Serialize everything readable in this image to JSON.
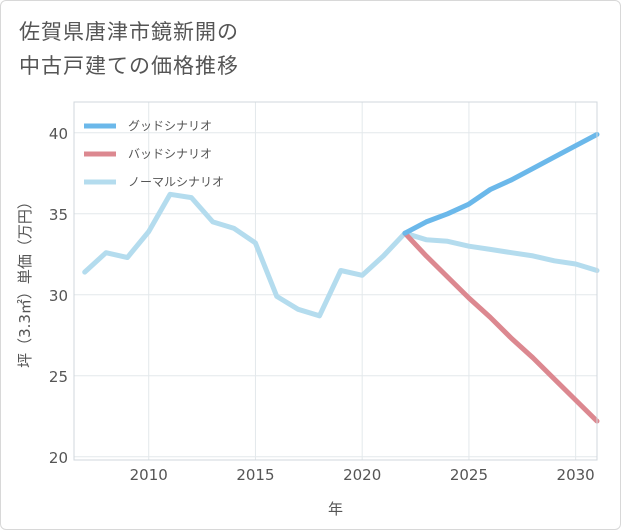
{
  "title": {
    "line1": "佐賀県唐津市鏡新開の",
    "line2": "中古戸建ての価格推移"
  },
  "chart_data": {
    "type": "line",
    "title": "佐賀県唐津市鏡新開の中古戸建ての価格推移",
    "xlabel": "年",
    "ylabel": "坪（3.3㎡）単価（万円）",
    "xlim": [
      2006.5,
      2031
    ],
    "ylim": [
      19.8,
      41.9
    ],
    "xticks": [
      2010,
      2015,
      2020,
      2025,
      2030
    ],
    "yticks": [
      20,
      25,
      30,
      35,
      40
    ],
    "grid": true,
    "legend_position": "top-left",
    "series": [
      {
        "name": "グッドシナリオ",
        "color": "#6bb8ea",
        "x": [
          2022,
          2023,
          2024,
          2025,
          2026,
          2027,
          2028,
          2029,
          2030,
          2031
        ],
        "values": [
          33.8,
          34.5,
          35.0,
          35.6,
          36.5,
          37.1,
          37.8,
          38.5,
          39.2,
          39.9
        ]
      },
      {
        "name": "バッドシナリオ",
        "color": "#dc8890",
        "x": [
          2022,
          2023,
          2024,
          2025,
          2026,
          2027,
          2028,
          2029,
          2030,
          2031
        ],
        "values": [
          33.8,
          32.4,
          31.1,
          29.8,
          28.6,
          27.3,
          26.1,
          24.8,
          23.5,
          22.2
        ]
      },
      {
        "name": "ノーマルシナリオ",
        "color": "#b4dcee",
        "x": [
          2007,
          2008,
          2009,
          2010,
          2011,
          2012,
          2013,
          2014,
          2015,
          2016,
          2017,
          2018,
          2019,
          2020,
          2021,
          2022,
          2023,
          2024,
          2025,
          2026,
          2027,
          2028,
          2029,
          2030,
          2031
        ],
        "values": [
          31.4,
          32.6,
          32.3,
          33.9,
          36.2,
          36.0,
          34.5,
          34.1,
          33.2,
          29.9,
          29.1,
          28.7,
          31.5,
          31.2,
          32.4,
          33.8,
          33.4,
          33.3,
          33.0,
          32.8,
          32.6,
          32.4,
          32.1,
          31.9,
          31.5
        ]
      }
    ]
  }
}
